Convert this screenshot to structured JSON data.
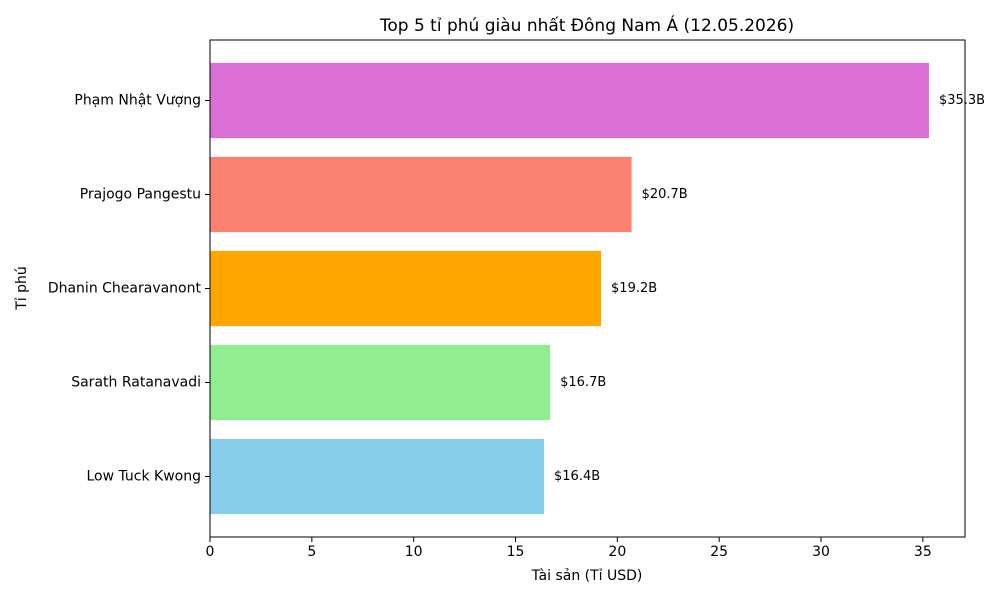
{
  "chart_data": {
    "type": "barh",
    "title": "Top 5 tỉ phú giàu nhất Đông Nam Á (12.05.2026)",
    "x_label": "Tài sản (Tỉ USD)",
    "y_label": "Tỉ phú",
    "categories": [
      "Phạm Nhật Vượng",
      "Prajogo Pangestu",
      "Dhanin Chearavanont",
      "Sarath Ratanavadi",
      "Low Tuck Kwong"
    ],
    "values": [
      35.3,
      20.7,
      19.2,
      16.7,
      16.4
    ],
    "value_labels": [
      "$35.3B",
      "$20.7B",
      "$19.2B",
      "$16.7B",
      "$16.4B"
    ],
    "colors": [
      "#da70d6",
      "#fa8072",
      "#ffa500",
      "#90ee90",
      "#87ceeb"
    ],
    "xlim": [
      0,
      37.07
    ],
    "xticks": [
      0,
      5,
      10,
      15,
      20,
      25,
      30,
      35
    ],
    "grid": false
  }
}
